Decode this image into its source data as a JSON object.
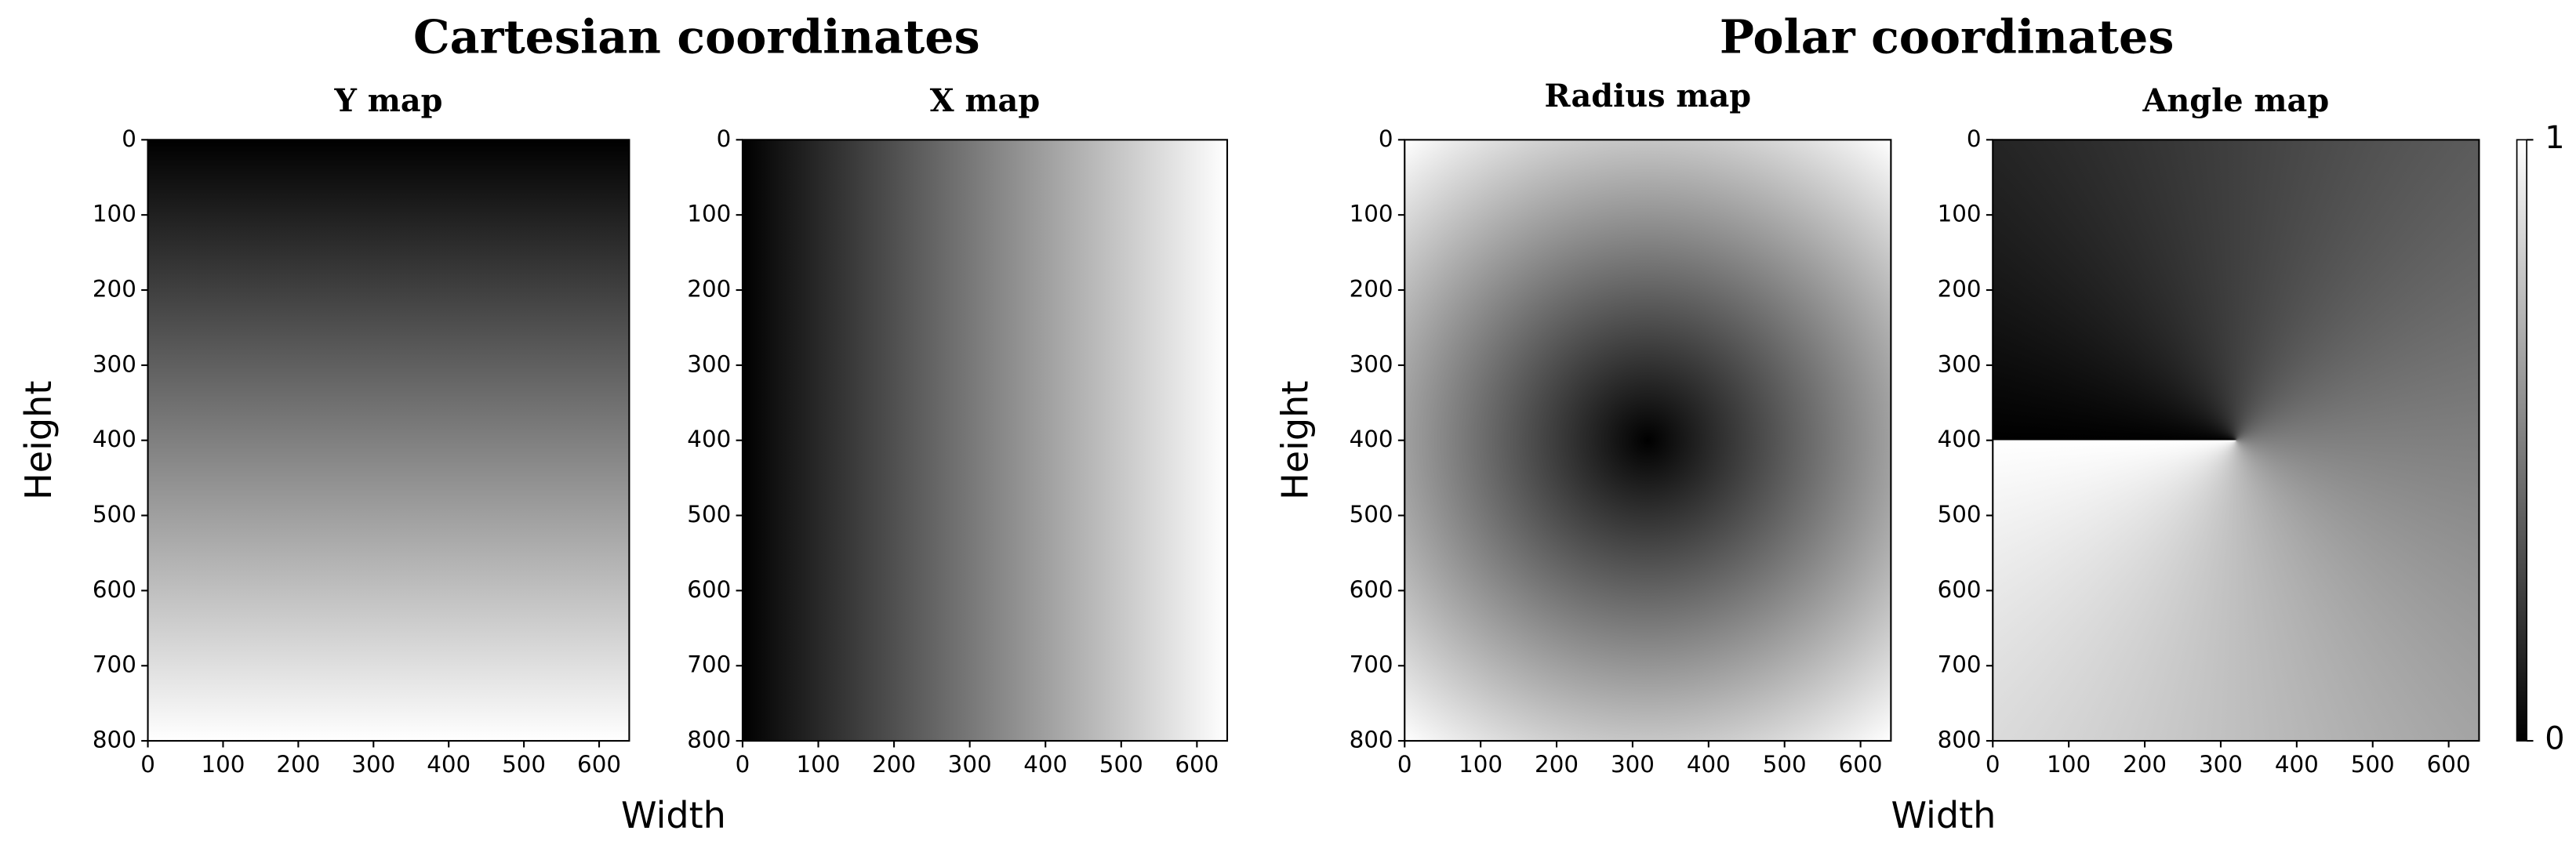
{
  "groups": [
    {
      "title": "Cartesian coordinates",
      "xlabel": "Width",
      "ylabel": "Height"
    },
    {
      "title": "Polar coordinates",
      "xlabel": "Width",
      "ylabel": "Height"
    }
  ],
  "chart_data": [
    {
      "type": "image",
      "title": "Y map",
      "xlim": [
        0,
        640
      ],
      "ylim": [
        800,
        0
      ],
      "xticks": [
        0,
        100,
        200,
        300,
        400,
        500,
        600
      ],
      "yticks": [
        0,
        100,
        200,
        300,
        400,
        500,
        600,
        700,
        800
      ]
    },
    {
      "type": "image",
      "title": "X map",
      "xlim": [
        0,
        640
      ],
      "ylim": [
        800,
        0
      ],
      "xticks": [
        0,
        100,
        200,
        300,
        400,
        500,
        600
      ],
      "yticks": [
        0,
        100,
        200,
        300,
        400,
        500,
        600,
        700,
        800
      ]
    },
    {
      "type": "image",
      "title": "Radius map",
      "xlim": [
        0,
        640
      ],
      "ylim": [
        800,
        0
      ],
      "xticks": [
        0,
        100,
        200,
        300,
        400,
        500,
        600
      ],
      "yticks": [
        0,
        100,
        200,
        300,
        400,
        500,
        600,
        700,
        800
      ]
    },
    {
      "type": "image",
      "title": "Angle map",
      "xlim": [
        0,
        640
      ],
      "ylim": [
        800,
        0
      ],
      "xticks": [
        0,
        100,
        200,
        300,
        400,
        500,
        600
      ],
      "yticks": [
        0,
        100,
        200,
        300,
        400,
        500,
        600,
        700,
        800
      ]
    }
  ],
  "colorbar": {
    "ylim": [
      0,
      1
    ],
    "yticks": [
      0,
      1
    ]
  }
}
